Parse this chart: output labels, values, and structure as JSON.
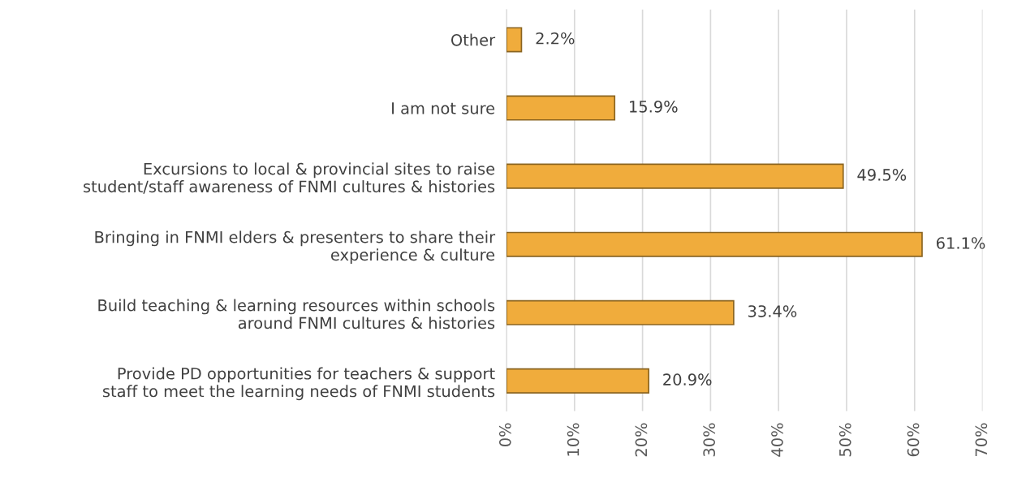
{
  "chart_data": {
    "type": "bar",
    "orientation": "horizontal",
    "categories": [
      "Other",
      "I am not sure",
      "Excursions to local & provincial sites to raise\nstudent/staff awareness of FNMI cultures & histories",
      "Bringing in FNMI elders & presenters to share their\nexperience & culture",
      "Build teaching & learning resources within schools\naround FNMI cultures & histories",
      "Provide PD opportunities for teachers & support\nstaff to meet the learning needs of FNMI students"
    ],
    "values": [
      2.2,
      15.9,
      49.5,
      61.1,
      33.4,
      20.9
    ],
    "value_labels": [
      "2.2%",
      "15.9%",
      "49.5%",
      "61.1%",
      "33.4%",
      "20.9%"
    ],
    "color": "#f0ac3c",
    "xlim": [
      0,
      70
    ],
    "xticks": [
      {
        "value": 0,
        "label": "0%"
      },
      {
        "value": 10,
        "label": "10%"
      },
      {
        "value": 20,
        "label": "20%"
      },
      {
        "value": 30,
        "label": "30%"
      },
      {
        "value": 40,
        "label": "40%"
      },
      {
        "value": 50,
        "label": "50%"
      },
      {
        "value": 60,
        "label": "60%"
      },
      {
        "value": 70,
        "label": "70%"
      }
    ],
    "grid": "x"
  }
}
